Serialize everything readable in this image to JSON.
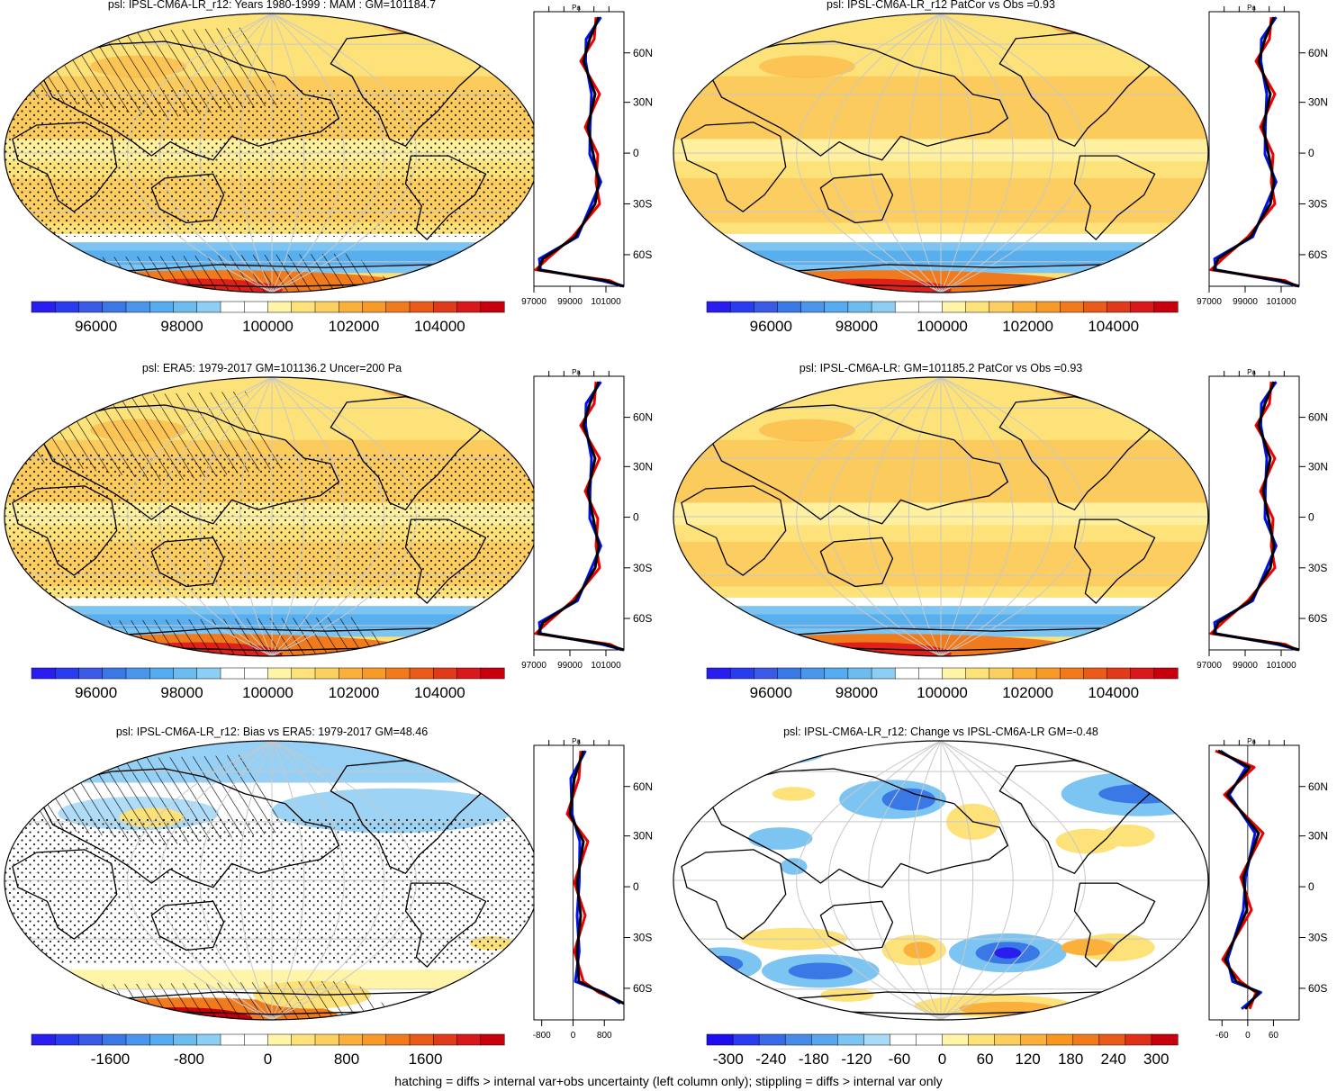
{
  "colors": {
    "blue_deep": "#2a1df0",
    "blue": "#3a78e6",
    "blue_light": "#7cc4f2",
    "pale_yellow": "#fff4a8",
    "yellow": "#fde27a",
    "orange": "#fbb03b",
    "orange_dark": "#f07a1c",
    "red": "#e0201a",
    "dark_red": "#c8000e",
    "zonal_model": "#ee0000",
    "zonal_obs": "#0011ee",
    "zonal_ref": "#000000",
    "grid": "#c8c8c8"
  },
  "footnote": "hatching = diffs > internal var+obs uncertainty (left column only); stippling = diffs > internal var only",
  "chart_data": [
    {
      "type": "heatmap",
      "field": "mean",
      "title": "psl: IPSL-CM6A-LR_r12: Years 1980-1999 : MAM : GM=101184.7",
      "colorbar": {
        "range": [
          94500,
          105500
        ],
        "ticks": [
          96000,
          98000,
          100000,
          102000,
          104000
        ],
        "labels": [
          "96000",
          "98000",
          "100000",
          "102000",
          "104000"
        ]
      },
      "zonal": {
        "unit": "Pa",
        "xlim": [
          97000,
          102000
        ],
        "xticks": [
          97000,
          99000,
          101000
        ],
        "xlabels": [
          "97000",
          "99000",
          "101000"
        ],
        "lat_labels": [
          "60N",
          "30N",
          "0",
          "30S",
          "60S"
        ],
        "zeroline": false
      },
      "hatching": true,
      "stippling": true
    },
    {
      "type": "heatmap",
      "field": "mean",
      "title": "psl: IPSL-CM6A-LR_r12 PatCor vs Obs =0.93",
      "colorbar": {
        "range": [
          94500,
          105500
        ],
        "ticks": [
          96000,
          98000,
          100000,
          102000,
          104000
        ],
        "labels": [
          "96000",
          "98000",
          "100000",
          "102000",
          "104000"
        ]
      },
      "zonal": {
        "unit": "Pa",
        "xlim": [
          97000,
          102000
        ],
        "xticks": [
          97000,
          99000,
          101000
        ],
        "xlabels": [
          "97000",
          "99000",
          "101000"
        ],
        "lat_labels": [
          "60N",
          "30N",
          "0",
          "30S",
          "60S"
        ],
        "zeroline": false
      },
      "hatching": false,
      "stippling": false
    },
    {
      "type": "heatmap",
      "field": "mean",
      "title": "psl: ERA5: 1979-2017 GM=101136.2 Uncer=200 Pa",
      "colorbar": {
        "range": [
          94500,
          105500
        ],
        "ticks": [
          96000,
          98000,
          100000,
          102000,
          104000
        ],
        "labels": [
          "96000",
          "98000",
          "100000",
          "102000",
          "104000"
        ]
      },
      "zonal": {
        "unit": "Pa",
        "xlim": [
          97000,
          102000
        ],
        "xticks": [
          97000,
          99000,
          101000
        ],
        "xlabels": [
          "97000",
          "99000",
          "101000"
        ],
        "lat_labels": [
          "60N",
          "30N",
          "0",
          "30S",
          "60S"
        ],
        "zeroline": false
      },
      "hatching": true,
      "stippling": true
    },
    {
      "type": "heatmap",
      "field": "mean",
      "title": "psl: IPSL-CM6A-LR: GM=101185.2 PatCor vs Obs =0.93",
      "colorbar": {
        "range": [
          94500,
          105500
        ],
        "ticks": [
          96000,
          98000,
          100000,
          102000,
          104000
        ],
        "labels": [
          "96000",
          "98000",
          "100000",
          "102000",
          "104000"
        ]
      },
      "zonal": {
        "unit": "Pa",
        "xlim": [
          97000,
          102000
        ],
        "xticks": [
          97000,
          99000,
          101000
        ],
        "xlabels": [
          "97000",
          "99000",
          "101000"
        ],
        "lat_labels": [
          "60N",
          "30N",
          "0",
          "30S",
          "60S"
        ],
        "zeroline": false
      },
      "hatching": false,
      "stippling": false
    },
    {
      "type": "heatmap",
      "field": "bias",
      "title": "psl: IPSL-CM6A-LR_r12: Bias vs ERA5: 1979-2017 GM=48.46",
      "colorbar": {
        "range": [
          -2400,
          2400
        ],
        "ticks": [
          -1600,
          -800,
          0,
          800,
          1600
        ],
        "labels": [
          "-1600",
          "-800",
          "0",
          "800",
          "1600"
        ]
      },
      "zonal": {
        "unit": "Pa",
        "xlim": [
          -1000,
          1300
        ],
        "xticks": [
          -800,
          0,
          800
        ],
        "xlabels": [
          "-800",
          "0",
          "800"
        ],
        "lat_labels": [
          "60N",
          "30N",
          "0",
          "30S",
          "60S"
        ],
        "zeroline": true
      },
      "hatching": true,
      "stippling": true
    },
    {
      "type": "heatmap",
      "field": "change",
      "title": "psl: IPSL-CM6A-LR_r12: Change vs IPSL-CM6A-LR GM=-0.48",
      "colorbar": {
        "range": [
          -330,
          330
        ],
        "ticks": [
          -300,
          -240,
          -180,
          -120,
          -60,
          0,
          60,
          120,
          180,
          240,
          300
        ],
        "labels": [
          "-300",
          "-240",
          "-180",
          "-120",
          "-60",
          "0",
          "60",
          "120",
          "180",
          "240",
          "300"
        ]
      },
      "zonal": {
        "unit": "Pa",
        "xlim": [
          -90,
          120
        ],
        "xticks": [
          -60,
          0,
          60
        ],
        "xlabels": [
          "-60",
          "0",
          "60"
        ],
        "lat_labels": [
          "60N",
          "30N",
          "0",
          "30S",
          "60S"
        ],
        "zeroline": true
      },
      "hatching": false,
      "stippling": false
    }
  ]
}
